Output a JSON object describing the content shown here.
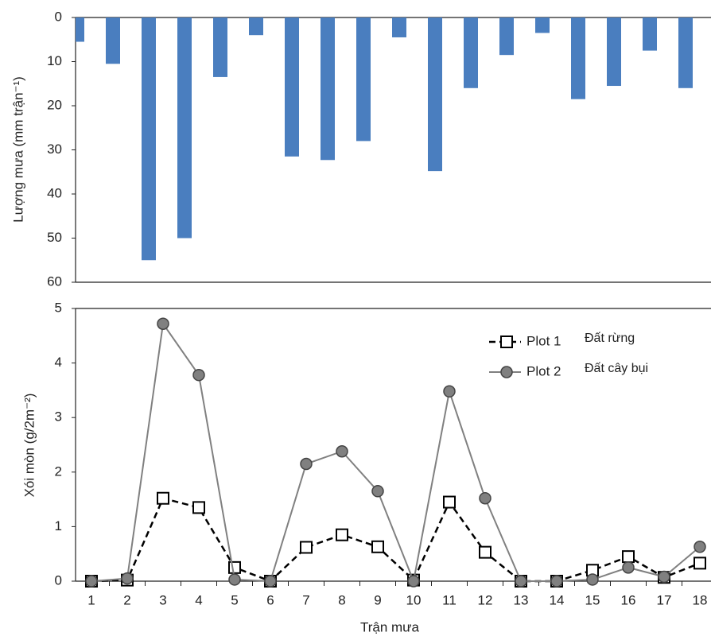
{
  "chart_data": [
    {
      "type": "bar",
      "ylabel": "Lượng mưa (mm trận⁻¹)",
      "y_inverted": true,
      "values": [
        5.5,
        10.5,
        55,
        50,
        13.5,
        4,
        31.5,
        32.3,
        28,
        4.5,
        34.8,
        16,
        8.5,
        3.5,
        18.5,
        15.5,
        7.5,
        16
      ],
      "color": "#4a7ebf",
      "ylim": [
        0,
        60
      ],
      "yticks": [
        0,
        10,
        20,
        30,
        40,
        50,
        60
      ]
    },
    {
      "type": "line",
      "xlabel": "Trận mưa",
      "ylabel": "Xói mòn (g/2m⁻²)",
      "categories": [
        "1",
        "2",
        "3",
        "4",
        "5",
        "6",
        "7",
        "8",
        "9",
        "10",
        "11",
        "12",
        "13",
        "14",
        "15",
        "16",
        "17",
        "18"
      ],
      "series": [
        {
          "name": "Plot 1",
          "description": "Đất rừng",
          "color": "#000000",
          "dashed": true,
          "marker": "square",
          "values": [
            0,
            0.02,
            1.52,
            1.35,
            0.25,
            0,
            0.62,
            0.85,
            0.63,
            0.02,
            1.45,
            0.53,
            0,
            0,
            0.2,
            0.45,
            0.07,
            0.33
          ]
        },
        {
          "name": "Plot 2",
          "description": "Đất cây bụi",
          "color": "#808080",
          "dashed": false,
          "marker": "circle",
          "values": [
            0,
            0.05,
            4.72,
            3.78,
            0.03,
            0,
            2.15,
            2.38,
            1.65,
            0,
            3.48,
            1.52,
            0,
            0,
            0.03,
            0.25,
            0.08,
            0.63
          ]
        }
      ],
      "ylim": [
        0,
        5
      ],
      "yticks": [
        0,
        1,
        2,
        3,
        4,
        5
      ]
    }
  ]
}
